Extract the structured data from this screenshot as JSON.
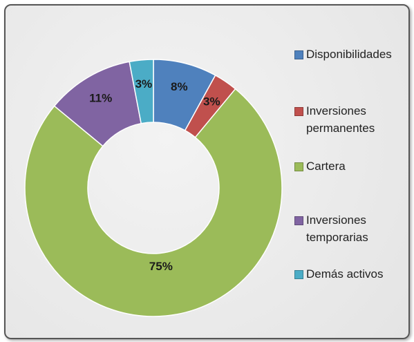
{
  "chart_data": {
    "type": "donut",
    "categories": [
      "Disponibilidades",
      "Inversiones permanentes",
      "Cartera",
      "Inversiones temporarias",
      "Demás activos"
    ],
    "values": [
      8,
      3,
      75,
      11,
      3
    ],
    "value_labels": [
      "8%",
      "3%",
      "75%",
      "11%",
      "3%"
    ],
    "colors": [
      "#4f81bd",
      "#c0504d",
      "#9bbb59",
      "#8064a2",
      "#4bacc6"
    ],
    "legend": "right"
  }
}
